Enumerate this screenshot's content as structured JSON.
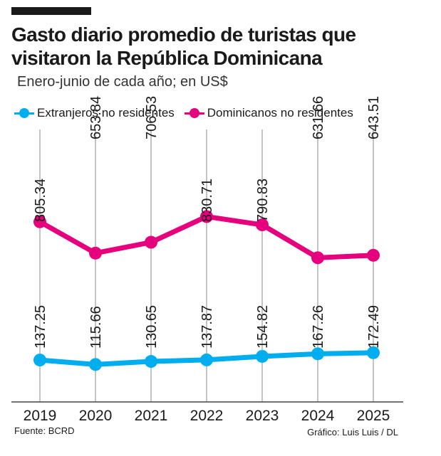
{
  "header": {
    "title_line1": "Gasto diario promedio de turistas que",
    "title_line2": "visitaron la República Dominicana",
    "subtitle": "Enero-junio de cada año; en US$"
  },
  "footer": {
    "source": "Fuente:  BCRD",
    "credit": "Gráfico: Luis Luis / DL"
  },
  "colors": {
    "foreign": "#00aeef",
    "dominican": "#e6007e",
    "grid": "#888888",
    "axis": "#444444"
  },
  "chart_data": {
    "type": "line",
    "title": "Gasto diario promedio de turistas que visitaron la República Dominicana",
    "subtitle": "Enero-junio de cada año; en US$",
    "xlabel": "",
    "ylabel": "US$",
    "categories": [
      "2019",
      "2020",
      "2021",
      "2022",
      "2023",
      "2024",
      "2025"
    ],
    "ylim": [
      0,
      900
    ],
    "grid": "vertical",
    "legend": "top-left",
    "series": [
      {
        "name": "Extranjeros no residentes",
        "key": "foreign",
        "values": [
          137.25,
          115.66,
          130.65,
          137.87,
          154.82,
          167.26,
          172.49
        ],
        "labels": [
          "137.25",
          "115.66",
          "130.65",
          "137.87",
          "154.82",
          "167.26",
          "172.49"
        ]
      },
      {
        "name": "Dominicanos no residentes",
        "key": "dominican",
        "values": [
          805.34,
          653.84,
          706.53,
          830.71,
          790.83,
          631.66,
          643.51
        ],
        "labels": [
          "805.34",
          "653.84",
          "706.53",
          "830.71",
          "790.83",
          "631.66",
          "643.51"
        ]
      }
    ]
  }
}
